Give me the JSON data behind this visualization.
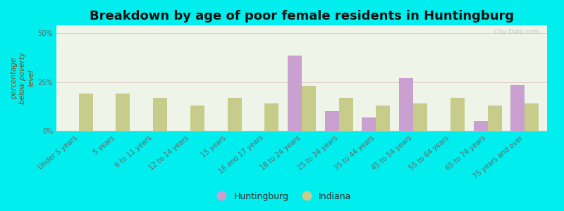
{
  "title": "Breakdown by age of poor female residents in Huntingburg",
  "ylabel": "percentage\nbelow poverty\nlevel",
  "categories": [
    "Under 5 years",
    "5 years",
    "6 to 11 years",
    "12 to 14 years",
    "15 years",
    "16 and 17 years",
    "18 to 24 years",
    "25 to 34 years",
    "35 to 44 years",
    "45 to 54 years",
    "55 to 64 years",
    "65 to 74 years",
    "75 years and over"
  ],
  "huntingburg": [
    0,
    0,
    0,
    0,
    0,
    0,
    38.5,
    10.0,
    7.0,
    27.0,
    0,
    5.0,
    23.5
  ],
  "indiana": [
    19.0,
    19.0,
    17.0,
    13.0,
    17.0,
    14.0,
    23.0,
    17.0,
    13.0,
    14.0,
    17.0,
    13.0,
    14.0
  ],
  "huntingburg_color": "#c9a0d0",
  "indiana_color": "#c8cc8a",
  "background_color": "#00eeee",
  "plot_bg": "#eef5e8",
  "yticks": [
    0,
    25,
    50
  ],
  "ylim": [
    0,
    54
  ],
  "bar_width": 0.38,
  "title_fontsize": 13,
  "axis_label_fontsize": 7.5,
  "tick_fontsize": 7,
  "legend_fontsize": 9,
  "watermark": "City-Data.com",
  "grid_color": "#e0c8c8",
  "ylabel_color": "#8B4513"
}
